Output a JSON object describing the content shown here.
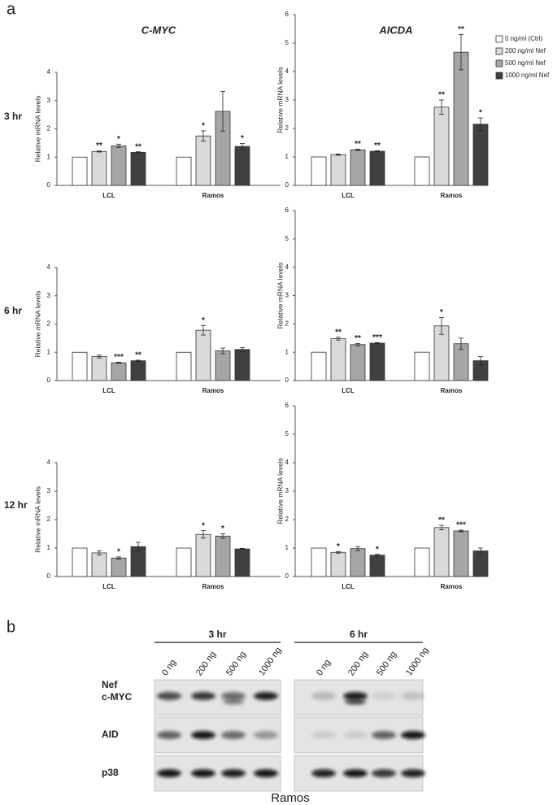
{
  "panel_a_label": "a",
  "row_labels": [
    "3 hr",
    "6 hr",
    "12 hr"
  ],
  "chart_data": [
    {
      "type": "bar",
      "title": "C-MYC",
      "ylabel": "Relative mRNA levels",
      "categories": [
        "LCL",
        "Ramos"
      ],
      "ylim": [
        0,
        4
      ],
      "yticks": [
        0,
        1,
        2,
        3,
        4
      ],
      "series": [
        {
          "color": "#ffffff",
          "values": [
            1,
            1
          ],
          "errors": [
            null,
            null
          ],
          "annotations": [
            null,
            null
          ]
        },
        {
          "color": "#d9d9d9",
          "values": [
            1.2,
            1.75
          ],
          "errors": [
            0.02,
            0.18
          ],
          "annotations": [
            "**",
            "*"
          ]
        },
        {
          "color": "#a6a6a6",
          "values": [
            1.4,
            2.62
          ],
          "errors": [
            0.06,
            0.7
          ],
          "annotations": [
            "*",
            null
          ]
        },
        {
          "color": "#404040",
          "values": [
            1.17,
            1.38
          ],
          "errors": [
            0.02,
            0.1
          ],
          "annotations": [
            "**",
            "*"
          ]
        }
      ]
    },
    {
      "type": "bar",
      "title": "AICDA",
      "ylabel": "Relative mRNA levels",
      "categories": [
        "LCL",
        "Ramos"
      ],
      "ylim": [
        0,
        6
      ],
      "yticks": [
        0,
        1,
        2,
        3,
        4,
        5,
        6
      ],
      "legend": "right",
      "series": [
        {
          "name": "0 ng/ml (Ctrl)",
          "color": "#ffffff",
          "values": [
            1,
            1
          ],
          "errors": [
            null,
            null
          ],
          "annotations": [
            null,
            null
          ]
        },
        {
          "name": "200 ng/ml Nef",
          "color": "#d9d9d9",
          "values": [
            1.08,
            2.75
          ],
          "errors": [
            0.02,
            0.25
          ],
          "annotations": [
            null,
            "**"
          ]
        },
        {
          "name": "500 ng/ml Nef",
          "color": "#a6a6a6",
          "values": [
            1.25,
            4.68
          ],
          "errors": [
            0.02,
            0.62
          ],
          "annotations": [
            "**",
            "**"
          ]
        },
        {
          "name": "1000 ng/ml Nef",
          "color": "#404040",
          "values": [
            1.2,
            2.15
          ],
          "errors": [
            0.02,
            0.22
          ],
          "annotations": [
            "**",
            "*"
          ]
        }
      ]
    },
    {
      "type": "bar",
      "ylabel": "Relative mRNA levels",
      "categories": [
        "LCL",
        "Ramos"
      ],
      "ylim": [
        0,
        4
      ],
      "yticks": [
        0,
        1,
        2,
        3,
        4
      ],
      "series": [
        {
          "color": "#ffffff",
          "values": [
            1,
            1
          ],
          "errors": [
            null,
            null
          ],
          "annotations": [
            null,
            null
          ]
        },
        {
          "color": "#d9d9d9",
          "values": [
            0.85,
            1.78
          ],
          "errors": [
            0.05,
            0.17
          ],
          "annotations": [
            null,
            "*"
          ]
        },
        {
          "color": "#a6a6a6",
          "values": [
            0.63,
            1.05
          ],
          "errors": [
            0.02,
            0.1
          ],
          "annotations": [
            "***",
            null
          ]
        },
        {
          "color": "#404040",
          "values": [
            0.7,
            1.1
          ],
          "errors": [
            0.02,
            0.07
          ],
          "annotations": [
            "**",
            null
          ]
        }
      ]
    },
    {
      "type": "bar",
      "ylabel": "Relative mRNA levels",
      "categories": [
        "LCL",
        "Ramos"
      ],
      "ylim": [
        0,
        6
      ],
      "yticks": [
        0,
        1,
        2,
        3,
        4,
        5,
        6
      ],
      "series": [
        {
          "color": "#ffffff",
          "values": [
            1,
            1
          ],
          "errors": [
            null,
            null
          ],
          "annotations": [
            null,
            null
          ]
        },
        {
          "color": "#d9d9d9",
          "values": [
            1.48,
            1.93
          ],
          "errors": [
            0.05,
            0.3
          ],
          "annotations": [
            "**",
            "*"
          ]
        },
        {
          "color": "#a6a6a6",
          "values": [
            1.27,
            1.3
          ],
          "errors": [
            0.04,
            0.2
          ],
          "annotations": [
            "**",
            null
          ]
        },
        {
          "color": "#404040",
          "values": [
            1.32,
            0.7
          ],
          "errors": [
            0.02,
            0.15
          ],
          "annotations": [
            "***",
            null
          ]
        }
      ]
    },
    {
      "type": "bar",
      "ylabel": "Relative mRNA levels",
      "categories": [
        "LCL",
        "Ramos"
      ],
      "ylim": [
        0,
        4
      ],
      "yticks": [
        0,
        1,
        2,
        3,
        4
      ],
      "series": [
        {
          "color": "#ffffff",
          "values": [
            1,
            1
          ],
          "errors": [
            null,
            null
          ],
          "annotations": [
            null,
            null
          ]
        },
        {
          "color": "#d9d9d9",
          "values": [
            0.83,
            1.48
          ],
          "errors": [
            0.07,
            0.13
          ],
          "annotations": [
            null,
            "*"
          ]
        },
        {
          "color": "#a6a6a6",
          "values": [
            0.65,
            1.42
          ],
          "errors": [
            0.04,
            0.08
          ],
          "annotations": [
            "*",
            "*"
          ]
        },
        {
          "color": "#404040",
          "values": [
            1.05,
            0.97
          ],
          "errors": [
            0.15,
            0.02
          ],
          "annotations": [
            null,
            null
          ]
        }
      ]
    },
    {
      "type": "bar",
      "ylabel": "Relative mRNA levels",
      "categories": [
        "LCL",
        "Ramos"
      ],
      "ylim": [
        0,
        6
      ],
      "yticks": [
        0,
        1,
        2,
        3,
        4,
        5,
        6
      ],
      "series": [
        {
          "color": "#ffffff",
          "values": [
            1,
            1
          ],
          "errors": [
            null,
            null
          ],
          "annotations": [
            null,
            null
          ]
        },
        {
          "color": "#d9d9d9",
          "values": [
            0.85,
            1.72
          ],
          "errors": [
            0.03,
            0.08
          ],
          "annotations": [
            "*",
            "**"
          ]
        },
        {
          "color": "#a6a6a6",
          "values": [
            0.98,
            1.6
          ],
          "errors": [
            0.07,
            0.03
          ],
          "annotations": [
            null,
            "***"
          ]
        },
        {
          "color": "#404040",
          "values": [
            0.75,
            0.9
          ],
          "errors": [
            0.03,
            0.1
          ],
          "annotations": [
            "*",
            null
          ]
        }
      ]
    }
  ],
  "blot": {
    "label": "b",
    "lane_header": "Nef",
    "groups": [
      {
        "label": "3 hr",
        "lanes": [
          "0 ng",
          "200 ng",
          "500 ng",
          "1000 ng"
        ]
      },
      {
        "label": "6 hr",
        "lanes": [
          "0 ng",
          "200 ng",
          "500 ng",
          "1000 ng"
        ]
      }
    ],
    "rows": [
      "c-MYC",
      "AID",
      "p38"
    ],
    "cell_line": "Ramos"
  }
}
